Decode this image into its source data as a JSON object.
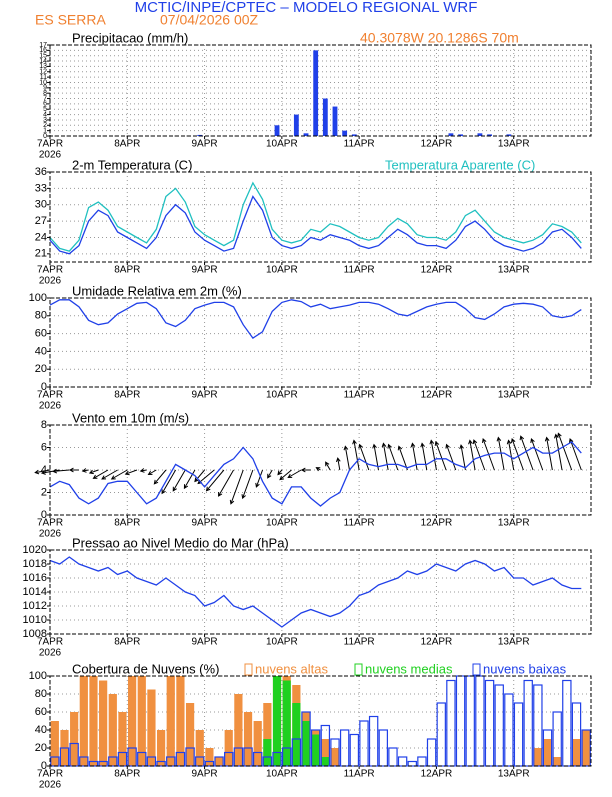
{
  "header": {
    "title": "MCTIC/INPE/CPTEC – MODELO REGIONAL WRF",
    "location": "ES SERRA",
    "run": "07/04/2026 00Z",
    "coords": "40.3078W 20.1286S 70m"
  },
  "chart_data": [
    {
      "type": "bar",
      "title": "Precipitacao (mm/h)",
      "year_label": "2026",
      "categories": [
        "7APR",
        null,
        null,
        null,
        null,
        null,
        null,
        null,
        "8APR",
        null,
        null,
        null,
        null,
        null,
        null,
        null,
        "9APR",
        null,
        null,
        null,
        null,
        null,
        null,
        null,
        "10APR",
        null,
        null,
        null,
        null,
        null,
        null,
        null,
        "11APR",
        null,
        null,
        null,
        null,
        null,
        null,
        null,
        "12APR",
        null,
        null,
        null,
        null,
        null,
        null,
        null,
        "13APR",
        null,
        null,
        null,
        null,
        null,
        null,
        null
      ],
      "series": [
        {
          "color": "#2040e8",
          "values": [
            0,
            0,
            0,
            0,
            0,
            0,
            0,
            0,
            0,
            0,
            0,
            0,
            0,
            0,
            0,
            0.2,
            0,
            0,
            0,
            0,
            0,
            0,
            0,
            2,
            0,
            4,
            0.5,
            16,
            7,
            5.5,
            1,
            0.3,
            0,
            0,
            0,
            0,
            0,
            0,
            0,
            0,
            0,
            0.5,
            0.3,
            0,
            0.5,
            0.3,
            0,
            0.3,
            0,
            0,
            0,
            0,
            0,
            0,
            0,
            0
          ]
        }
      ],
      "ylim": [
        0,
        17
      ],
      "yticks": [
        0,
        1,
        2,
        3,
        4,
        5,
        6,
        7,
        8,
        9,
        10,
        11,
        12,
        13,
        14,
        15,
        16,
        17
      ],
      "grid": true
    },
    {
      "type": "line",
      "title": "2-m Temperatura (C)",
      "year_label": "2026",
      "categories": [
        "7APR",
        null,
        null,
        null,
        null,
        null,
        null,
        null,
        "8APR",
        null,
        null,
        null,
        null,
        null,
        null,
        null,
        "9APR",
        null,
        null,
        null,
        null,
        null,
        null,
        null,
        "10APR",
        null,
        null,
        null,
        null,
        null,
        null,
        null,
        "11APR",
        null,
        null,
        null,
        null,
        null,
        null,
        null,
        "12APR",
        null,
        null,
        null,
        null,
        null,
        null,
        null,
        "13APR",
        null,
        null,
        null,
        null,
        null,
        null,
        null
      ],
      "series": [
        {
          "color": "#2040e8",
          "values": [
            23.5,
            21.5,
            21,
            22.5,
            27,
            29,
            28,
            25,
            24,
            23,
            22,
            24,
            28,
            30,
            28.5,
            25,
            23.5,
            22.5,
            21.5,
            22,
            27,
            31.5,
            29,
            24,
            22.5,
            22,
            22.5,
            24,
            23.5,
            24.5,
            24,
            23.5,
            22.5,
            22,
            22.5,
            24,
            25.5,
            24.5,
            23,
            22.5,
            22.5,
            22,
            23.5,
            26,
            27,
            25.5,
            23.5,
            22.5,
            22,
            21.5,
            22,
            23,
            25,
            25.5,
            24,
            22
          ]
        },
        {
          "name": "Temperatura Aparente (C)",
          "color": "#20c0c0",
          "values": [
            24,
            22,
            21.5,
            23.5,
            29.5,
            30.5,
            29,
            26,
            25,
            24,
            23,
            25.5,
            31.5,
            33,
            30.5,
            26,
            24.5,
            23.5,
            22.5,
            23.5,
            30,
            34,
            31,
            25.5,
            23.5,
            23,
            23.5,
            25.5,
            25,
            26.5,
            26,
            25,
            24,
            23.5,
            24,
            26,
            27.5,
            26.5,
            24.5,
            24,
            24,
            23.5,
            25,
            28,
            29,
            27,
            25,
            24,
            23.5,
            23,
            23.5,
            24.5,
            26.5,
            26,
            25,
            23
          ]
        }
      ],
      "ylim": [
        19.5,
        36
      ],
      "yticks": [
        21,
        24,
        27,
        30,
        33,
        36
      ],
      "grid": true
    },
    {
      "type": "line",
      "title": "Umidade Relativa em 2m (%)",
      "year_label": "2026",
      "categories": [
        "7APR",
        null,
        null,
        null,
        null,
        null,
        null,
        null,
        "8APR",
        null,
        null,
        null,
        null,
        null,
        null,
        null,
        "9APR",
        null,
        null,
        null,
        null,
        null,
        null,
        null,
        "10APR",
        null,
        null,
        null,
        null,
        null,
        null,
        null,
        "11APR",
        null,
        null,
        null,
        null,
        null,
        null,
        null,
        "12APR",
        null,
        null,
        null,
        null,
        null,
        null,
        null,
        "13APR",
        null,
        null,
        null,
        null,
        null,
        null,
        null
      ],
      "series": [
        {
          "color": "#2040e8",
          "values": [
            92,
            98,
            98,
            90,
            75,
            70,
            72,
            82,
            88,
            94,
            95,
            88,
            72,
            68,
            75,
            88,
            92,
            95,
            95,
            90,
            70,
            55,
            62,
            85,
            95,
            98,
            96,
            90,
            93,
            88,
            90,
            92,
            95,
            95,
            93,
            88,
            82,
            80,
            85,
            90,
            93,
            95,
            95,
            88,
            78,
            76,
            82,
            90,
            93,
            94,
            93,
            90,
            80,
            78,
            80,
            87
          ]
        }
      ],
      "ylim": [
        0,
        100
      ],
      "yticks": [
        0,
        20,
        40,
        60,
        80,
        100
      ],
      "grid": true
    },
    {
      "type": "wind",
      "title": "Vento em 10m (m/s)",
      "year_label": "2026",
      "categories": [
        "7APR",
        null,
        null,
        null,
        null,
        null,
        null,
        null,
        "8APR",
        null,
        null,
        null,
        null,
        null,
        null,
        null,
        "9APR",
        null,
        null,
        null,
        null,
        null,
        null,
        null,
        "10APR",
        null,
        null,
        null,
        null,
        null,
        null,
        null,
        "11APR",
        null,
        null,
        null,
        null,
        null,
        null,
        null,
        "12APR",
        null,
        null,
        null,
        null,
        null,
        null,
        null,
        "13APR",
        null,
        null,
        null,
        null,
        null,
        null,
        null
      ],
      "series": [
        {
          "color": "#2040e8",
          "values": [
            2.5,
            3,
            2.7,
            1.5,
            1,
            1.5,
            2.8,
            3,
            3,
            2,
            1,
            1.5,
            3,
            4.5,
            4,
            3.5,
            2.5,
            3.5,
            4.5,
            5,
            6,
            5,
            3,
            1.5,
            1,
            2.5,
            2.5,
            1.5,
            0.8,
            1.5,
            2,
            4,
            5,
            4.5,
            4.3,
            4.5,
            4.5,
            4.2,
            4.5,
            4.5,
            5,
            5,
            4.5,
            4.2,
            5,
            5.3,
            5.5,
            5.5,
            5,
            5.5,
            6,
            5.5,
            5.5,
            6,
            6.5,
            5.5
          ]
        }
      ],
      "directions": [
        80,
        80,
        85,
        90,
        80,
        70,
        60,
        60,
        60,
        70,
        80,
        60,
        40,
        30,
        30,
        30,
        40,
        50,
        40,
        30,
        20,
        20,
        20,
        30,
        40,
        50,
        60,
        90,
        120,
        150,
        170,
        170,
        170,
        160,
        170,
        170,
        160,
        160,
        170,
        170,
        170,
        160,
        160,
        170,
        170,
        160,
        160,
        170,
        170,
        160,
        160,
        160,
        170,
        170,
        160,
        160
      ],
      "ylim": [
        0,
        8
      ],
      "yticks": [
        0,
        2,
        4,
        6,
        8
      ],
      "grid": true
    },
    {
      "type": "line",
      "title": "Pressao ao Nivel Medio do Mar (hPa)",
      "year_label": "2026",
      "categories": [
        "7APR",
        null,
        null,
        null,
        null,
        null,
        null,
        null,
        "8APR",
        null,
        null,
        null,
        null,
        null,
        null,
        null,
        "9APR",
        null,
        null,
        null,
        null,
        null,
        null,
        null,
        "10APR",
        null,
        null,
        null,
        null,
        null,
        null,
        null,
        "11APR",
        null,
        null,
        null,
        null,
        null,
        null,
        null,
        "12APR",
        null,
        null,
        null,
        null,
        null,
        null,
        null,
        "13APR",
        null,
        null,
        null,
        null,
        null,
        null,
        null
      ],
      "series": [
        {
          "color": "#2040e8",
          "values": [
            1018.5,
            1018,
            1019,
            1018,
            1017.5,
            1017,
            1017.5,
            1016.5,
            1017,
            1016,
            1015.5,
            1015,
            1016,
            1015,
            1014,
            1013.5,
            1012,
            1012.5,
            1013.5,
            1012,
            1011.5,
            1012,
            1011,
            1010,
            1009,
            1010,
            1011,
            1011.5,
            1011,
            1010.5,
            1011,
            1012,
            1013.5,
            1014,
            1015,
            1015.5,
            1016,
            1017,
            1016.5,
            1017,
            1018,
            1017.5,
            1017,
            1018,
            1018.5,
            1018,
            1017,
            1017.5,
            1016,
            1016,
            1015,
            1015.5,
            1016,
            1015,
            1014.5,
            1014.5
          ]
        }
      ],
      "ylim": [
        1008,
        1020
      ],
      "yticks": [
        1008,
        1010,
        1012,
        1014,
        1016,
        1018,
        1020
      ],
      "grid": true
    },
    {
      "type": "bar",
      "title": "Cobertura de Nuvens (%)",
      "year_label": "2026",
      "categories": [
        "7APR",
        null,
        null,
        null,
        null,
        null,
        null,
        null,
        "8APR",
        null,
        null,
        null,
        null,
        null,
        null,
        null,
        "9APR",
        null,
        null,
        null,
        null,
        null,
        null,
        null,
        "10APR",
        null,
        null,
        null,
        null,
        null,
        null,
        null,
        "11APR",
        null,
        null,
        null,
        null,
        null,
        null,
        null,
        "12APR",
        null,
        null,
        null,
        null,
        null,
        null,
        null,
        "13APR",
        null,
        null,
        null,
        null,
        null,
        null,
        null
      ],
      "series": [
        {
          "name": "nuvens altas",
          "color": "#f09040",
          "values": [
            50,
            40,
            60,
            100,
            100,
            95,
            80,
            60,
            100,
            100,
            85,
            40,
            100,
            100,
            70,
            40,
            20,
            10,
            40,
            80,
            60,
            50,
            70,
            100,
            100,
            90,
            60,
            40,
            30,
            20,
            0,
            0,
            0,
            0,
            0,
            0,
            0,
            0,
            0,
            0,
            0,
            0,
            0,
            0,
            0,
            0,
            0,
            0,
            0,
            0,
            20,
            30,
            10,
            0,
            30,
            40
          ]
        },
        {
          "name": "nuvens medias",
          "color": "#20d020",
          "values": [
            0,
            0,
            0,
            0,
            0,
            0,
            0,
            0,
            0,
            0,
            0,
            0,
            0,
            0,
            0,
            0,
            0,
            0,
            0,
            0,
            0,
            0,
            30,
            100,
            95,
            70,
            50,
            35,
            10,
            0,
            0,
            0,
            0,
            0,
            0,
            0,
            0,
            0,
            0,
            0,
            0,
            0,
            0,
            0,
            0,
            0,
            0,
            0,
            0,
            0,
            0,
            0,
            0,
            0,
            0,
            0
          ]
        },
        {
          "name": "nuvens baixas",
          "color": "#2040e8",
          "filled": false,
          "values": [
            10,
            20,
            25,
            10,
            5,
            5,
            10,
            15,
            20,
            15,
            10,
            5,
            10,
            15,
            20,
            10,
            5,
            10,
            15,
            20,
            20,
            15,
            10,
            15,
            20,
            30,
            60,
            40,
            45,
            30,
            40,
            35,
            50,
            55,
            40,
            20,
            10,
            5,
            10,
            30,
            70,
            95,
            100,
            100,
            100,
            95,
            90,
            80,
            70,
            95,
            90,
            40,
            60,
            95,
            70,
            40
          ]
        }
      ],
      "ylim": [
        0,
        100
      ],
      "yticks": [
        0,
        20,
        40,
        60,
        80,
        100
      ],
      "grid": true
    }
  ]
}
